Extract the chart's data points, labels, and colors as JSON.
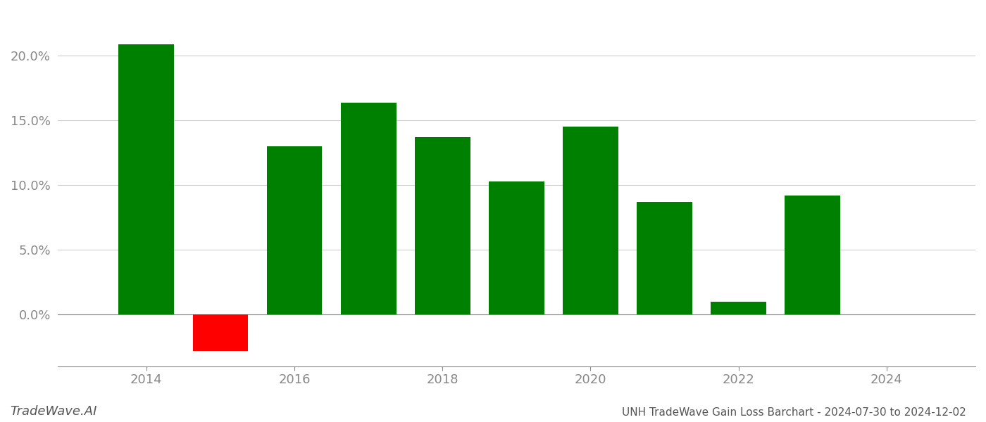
{
  "years": [
    2014,
    2015,
    2016,
    2017,
    2018,
    2019,
    2020,
    2021,
    2022,
    2023
  ],
  "values": [
    0.209,
    -0.028,
    0.13,
    0.164,
    0.137,
    0.103,
    0.145,
    0.087,
    0.01,
    0.092
  ],
  "colors": [
    "#008000",
    "#ff0000",
    "#008000",
    "#008000",
    "#008000",
    "#008000",
    "#008000",
    "#008000",
    "#008000",
    "#008000"
  ],
  "title": "UNH TradeWave Gain Loss Barchart - 2024-07-30 to 2024-12-02",
  "watermark": "TradeWave.AI",
  "ylim_min": -0.04,
  "ylim_max": 0.235,
  "background_color": "#ffffff",
  "grid_color": "#cccccc",
  "axis_label_color": "#888888",
  "bar_width": 0.75,
  "xlim_min": 2012.8,
  "xlim_max": 2025.2,
  "xticks": [
    2014,
    2016,
    2018,
    2020,
    2022,
    2024
  ],
  "xtick_labels": [
    "2014",
    "2016",
    "2018",
    "2020",
    "2022",
    "2024"
  ],
  "ytick_step": 0.05,
  "title_fontsize": 11,
  "watermark_fontsize": 13,
  "tick_label_fontsize": 13
}
